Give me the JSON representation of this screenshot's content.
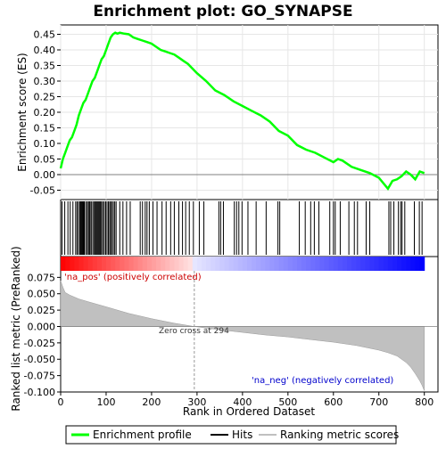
{
  "chart_data": {
    "type": "line",
    "title": "Enrichment plot: GO_SYNAPSE",
    "xlabel": "Rank in Ordered Dataset",
    "xlim": [
      0,
      830
    ],
    "x_ticks": [
      0,
      100,
      200,
      300,
      400,
      500,
      600,
      700,
      800
    ],
    "panels": {
      "enrichment": {
        "ylabel": "Enrichment score (ES)",
        "ylim": [
          -0.08,
          0.48
        ],
        "y_ticks": [
          -0.05,
          0.0,
          0.05,
          0.1,
          0.15,
          0.2,
          0.25,
          0.3,
          0.35,
          0.4,
          0.45
        ],
        "y_tick_labels": [
          "-0.05",
          "0.00",
          "0.05",
          "0.10",
          "0.15",
          "0.20",
          "0.25",
          "0.30",
          "0.35",
          "0.40",
          "0.45"
        ],
        "series": {
          "name": "Enrichment profile",
          "color": "#00ff00",
          "x": [
            0,
            5,
            10,
            15,
            20,
            25,
            30,
            35,
            40,
            45,
            50,
            55,
            60,
            65,
            70,
            75,
            80,
            85,
            90,
            95,
            100,
            105,
            110,
            115,
            120,
            125,
            130,
            140,
            150,
            160,
            170,
            180,
            190,
            200,
            210,
            220,
            230,
            240,
            250,
            260,
            270,
            280,
            290,
            300,
            320,
            340,
            360,
            380,
            400,
            420,
            440,
            460,
            480,
            500,
            520,
            540,
            560,
            580,
            600,
            610,
            620,
            640,
            660,
            680,
            700,
            720,
            730,
            740,
            750,
            760,
            770,
            780,
            790,
            800
          ],
          "y": [
            0.02,
            0.05,
            0.07,
            0.09,
            0.11,
            0.12,
            0.14,
            0.16,
            0.19,
            0.21,
            0.23,
            0.24,
            0.26,
            0.28,
            0.3,
            0.31,
            0.33,
            0.35,
            0.37,
            0.38,
            0.4,
            0.42,
            0.44,
            0.45,
            0.455,
            0.452,
            0.455,
            0.452,
            0.45,
            0.44,
            0.435,
            0.43,
            0.425,
            0.42,
            0.41,
            0.4,
            0.395,
            0.39,
            0.385,
            0.375,
            0.365,
            0.355,
            0.34,
            0.325,
            0.3,
            0.27,
            0.255,
            0.235,
            0.22,
            0.205,
            0.19,
            0.17,
            0.14,
            0.125,
            0.095,
            0.08,
            0.07,
            0.055,
            0.04,
            0.05,
            0.045,
            0.025,
            0.015,
            0.005,
            -0.01,
            -0.045,
            -0.02,
            -0.015,
            -0.005,
            0.01,
            0.0,
            -0.015,
            0.01,
            0.005
          ]
        }
      },
      "hits": {
        "name": "Hits",
        "color": "#000000",
        "positions": [
          3,
          9,
          16,
          21,
          27,
          33,
          36,
          39,
          42,
          44,
          46,
          48,
          50,
          52,
          55,
          58,
          61,
          63,
          65,
          68,
          71,
          74,
          76,
          78,
          80,
          82,
          84,
          86,
          88,
          90,
          93,
          96,
          99,
          102,
          105,
          108,
          110,
          113,
          116,
          119,
          122,
          130,
          137,
          145,
          153,
          175,
          180,
          186,
          190,
          195,
          203,
          212,
          223,
          232,
          242,
          250,
          260,
          268,
          275,
          283,
          292,
          305,
          315,
          348,
          352,
          358,
          382,
          387,
          392,
          399,
          412,
          430,
          452,
          478,
          482,
          525,
          538,
          550,
          558,
          568,
          592,
          600,
          604,
          615,
          634,
          646,
          653,
          672,
          680,
          722,
          726,
          733,
          743,
          748,
          751,
          757,
          778,
          789,
          795
        ]
      },
      "ranking_bar": {
        "positive_label": "'na_pos' (positively correlated)",
        "negative_label": "'na_neg' (negatively correlated)",
        "positive_color": "#ff0000",
        "negative_color": "#0000ff"
      },
      "ranking": {
        "name": "Ranking metric scores",
        "ylabel": "Ranked list metric (PreRanked)",
        "ylim": [
          -0.1,
          0.085
        ],
        "y_ticks": [
          -0.1,
          -0.075,
          -0.05,
          -0.025,
          0.0,
          0.025,
          0.05,
          0.075
        ],
        "y_tick_labels": [
          "-0.100",
          "-0.075",
          "-0.050",
          "-0.025",
          "0.000",
          "0.025",
          "0.050",
          "0.075"
        ],
        "fill_color": "#c0c0c0",
        "zero_cross_label": "Zero cross at 294",
        "zero_cross": 294,
        "x": [
          0,
          5,
          10,
          20,
          40,
          60,
          80,
          100,
          150,
          200,
          250,
          294,
          350,
          400,
          450,
          500,
          550,
          600,
          650,
          700,
          720,
          740,
          760,
          770,
          780,
          790,
          795,
          800
        ],
        "y": [
          0.07,
          0.06,
          0.052,
          0.048,
          0.042,
          0.038,
          0.034,
          0.03,
          0.02,
          0.012,
          0.005,
          0.0,
          -0.005,
          -0.009,
          -0.013,
          -0.016,
          -0.02,
          -0.024,
          -0.029,
          -0.036,
          -0.04,
          -0.045,
          -0.055,
          -0.062,
          -0.072,
          -0.083,
          -0.09,
          -0.098
        ]
      }
    },
    "legend": {
      "placement": "bottom",
      "entries": [
        {
          "label": "Enrichment profile",
          "color": "#00ff00"
        },
        {
          "label": "Hits",
          "color": "#000000"
        },
        {
          "label": "Ranking metric scores",
          "color": "#c0c0c0"
        }
      ]
    }
  }
}
